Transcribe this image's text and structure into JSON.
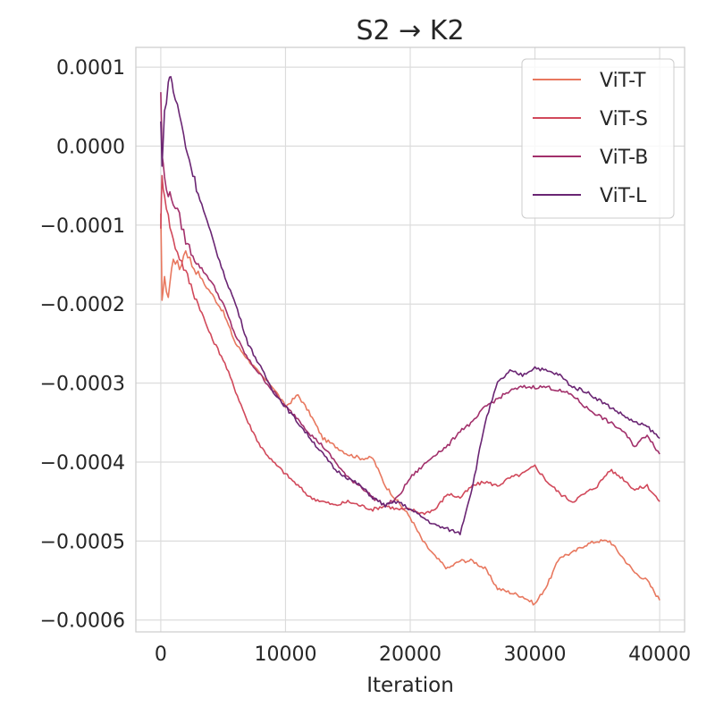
{
  "chart_data": {
    "type": "line",
    "title": "S2 → K2",
    "xlabel": "Iteration",
    "ylabel": "",
    "xlim": [
      -2000,
      42000
    ],
    "ylim": [
      -0.000615,
      0.000125
    ],
    "xticks": [
      0,
      10000,
      20000,
      30000,
      40000
    ],
    "xtick_labels": [
      "0",
      "10000",
      "20000",
      "30000",
      "40000"
    ],
    "yticks": [
      0.0001,
      0.0,
      -0.0001,
      -0.0002,
      -0.0003,
      -0.0004,
      -0.0005,
      -0.0006
    ],
    "ytick_labels": [
      "0.0001",
      "0.0000",
      "−0.0001",
      "−0.0002",
      "−0.0003",
      "−0.0004",
      "−0.0005",
      "−0.0006"
    ],
    "grid": true,
    "legend_position": "top-right",
    "series": [
      {
        "name": "ViT-T",
        "color": "#e8785f",
        "x": [
          0,
          100,
          300,
          600,
          1000,
          1500,
          2000,
          2500,
          3000,
          3500,
          4000,
          5000,
          6000,
          7000,
          8000,
          9000,
          10000,
          11000,
          12000,
          13000,
          14000,
          15000,
          16000,
          17000,
          18000,
          19000,
          20000,
          21000,
          22000,
          23000,
          24000,
          25000,
          26000,
          27000,
          28000,
          29000,
          30000,
          31000,
          32000,
          33000,
          34000,
          35000,
          36000,
          37000,
          38000,
          39000,
          40000
        ],
        "y": [
          -9e-05,
          -0.00019,
          -0.00017,
          -0.00019,
          -0.00014,
          -0.000155,
          -0.00013,
          -0.00015,
          -0.00016,
          -0.000175,
          -0.000185,
          -0.00021,
          -0.00025,
          -0.00027,
          -0.00029,
          -0.000305,
          -0.00033,
          -0.000315,
          -0.00034,
          -0.00037,
          -0.00038,
          -0.00039,
          -0.000395,
          -0.000395,
          -0.00043,
          -0.00045,
          -0.00047,
          -0.0005,
          -0.00052,
          -0.000535,
          -0.000525,
          -0.000525,
          -0.000535,
          -0.00056,
          -0.000565,
          -0.00057,
          -0.00058,
          -0.000555,
          -0.00052,
          -0.000515,
          -0.000505,
          -0.0005,
          -0.0005,
          -0.00052,
          -0.00054,
          -0.00055,
          -0.000575
        ]
      },
      {
        "name": "ViT-S",
        "color": "#d1495b",
        "x": [
          0,
          100,
          300,
          600,
          1000,
          1500,
          2000,
          3000,
          4000,
          5000,
          6000,
          7000,
          8000,
          9000,
          10000,
          11000,
          12000,
          13000,
          14000,
          15000,
          16000,
          17000,
          18000,
          19000,
          20000,
          21000,
          22000,
          23000,
          24000,
          25000,
          26000,
          27000,
          28000,
          29000,
          30000,
          31000,
          32000,
          33000,
          34000,
          35000,
          36000,
          37000,
          38000,
          39000,
          40000
        ],
        "y": [
          -0.0001,
          -4e-05,
          -6e-05,
          -9e-05,
          -0.00012,
          -0.00014,
          -0.00016,
          -0.0002,
          -0.00024,
          -0.00027,
          -0.00031,
          -0.00035,
          -0.00038,
          -0.0004,
          -0.000415,
          -0.00043,
          -0.000445,
          -0.00045,
          -0.000455,
          -0.00045,
          -0.000455,
          -0.00046,
          -0.000455,
          -0.00046,
          -0.00046,
          -0.000465,
          -0.00046,
          -0.00044,
          -0.000445,
          -0.00043,
          -0.000425,
          -0.00043,
          -0.00042,
          -0.000415,
          -0.000405,
          -0.000425,
          -0.00044,
          -0.00045,
          -0.00044,
          -0.00043,
          -0.00041,
          -0.00042,
          -0.000435,
          -0.00043,
          -0.00045
        ]
      },
      {
        "name": "ViT-B",
        "color": "#a2306b",
        "x": [
          0,
          100,
          300,
          600,
          1000,
          1500,
          2000,
          3000,
          4000,
          5000,
          6000,
          7000,
          8000,
          9000,
          10000,
          11000,
          12000,
          13000,
          14000,
          15000,
          16000,
          17000,
          18000,
          19000,
          20000,
          21000,
          22000,
          23000,
          24000,
          25000,
          26000,
          27000,
          28000,
          29000,
          30000,
          31000,
          32000,
          33000,
          34000,
          35000,
          36000,
          37000,
          38000,
          39000,
          40000
        ],
        "y": [
          7e-05,
          -1e-05,
          -4e-05,
          -6e-05,
          -7e-05,
          -9e-05,
          -0.00012,
          -0.00015,
          -0.00017,
          -0.0002,
          -0.00024,
          -0.00027,
          -0.00029,
          -0.00031,
          -0.00033,
          -0.000345,
          -0.000365,
          -0.00038,
          -0.0004,
          -0.00042,
          -0.00043,
          -0.000445,
          -0.000455,
          -0.000445,
          -0.00042,
          -0.000405,
          -0.00039,
          -0.00038,
          -0.00036,
          -0.00035,
          -0.00033,
          -0.00032,
          -0.00031,
          -0.000305,
          -0.000305,
          -0.000305,
          -0.00031,
          -0.000315,
          -0.00033,
          -0.00034,
          -0.00035,
          -0.00036,
          -0.00038,
          -0.000365,
          -0.00039
        ]
      },
      {
        "name": "ViT-L",
        "color": "#6a2573",
        "x": [
          0,
          100,
          300,
          600,
          800,
          1000,
          1500,
          2000,
          3000,
          4000,
          5000,
          6000,
          7000,
          8000,
          9000,
          10000,
          11000,
          12000,
          13000,
          14000,
          15000,
          16000,
          17000,
          18000,
          19000,
          20000,
          21000,
          22000,
          23000,
          24000,
          25000,
          26000,
          27000,
          28000,
          29000,
          30000,
          31000,
          32000,
          33000,
          34000,
          35000,
          36000,
          37000,
          38000,
          39000,
          40000
        ],
        "y": [
          3e-05,
          -2e-05,
          4e-05,
          8e-05,
          9e-05,
          7e-05,
          4e-05,
          0.0,
          -6e-05,
          -0.00011,
          -0.00016,
          -0.0002,
          -0.00025,
          -0.00028,
          -0.00031,
          -0.00033,
          -0.00035,
          -0.00037,
          -0.00039,
          -0.00041,
          -0.00042,
          -0.00043,
          -0.000445,
          -0.000455,
          -0.00045,
          -0.00046,
          -0.00047,
          -0.00048,
          -0.000485,
          -0.00049,
          -0.00043,
          -0.00035,
          -0.0003,
          -0.000285,
          -0.00029,
          -0.00028,
          -0.000285,
          -0.00029,
          -0.000305,
          -0.00031,
          -0.00032,
          -0.00033,
          -0.00034,
          -0.00035,
          -0.000355,
          -0.00037
        ]
      }
    ]
  }
}
